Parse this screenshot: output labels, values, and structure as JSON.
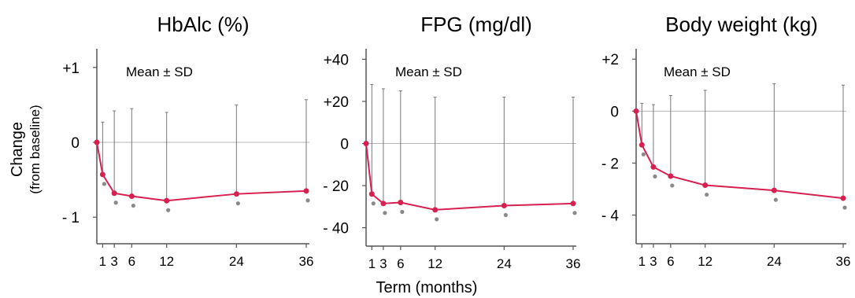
{
  "figure": {
    "ylabel_main": "Change",
    "ylabel_sub": "(from baseline)",
    "xlabel": "Term (months)"
  },
  "chart_data": [
    {
      "type": "line",
      "title": "HbAlc (%)",
      "annotation": "Mean ± SD",
      "x": [
        0,
        1,
        3,
        6,
        12,
        24,
        36
      ],
      "x_ticks": [
        "1",
        "3",
        "6",
        "12",
        "24",
        "36"
      ],
      "y_ticks": [
        "+1",
        "0",
        "- 1"
      ],
      "ylim": [
        -1.25,
        1.25
      ],
      "mean": [
        0,
        -0.43,
        -0.68,
        -0.72,
        -0.78,
        -0.69,
        -0.65
      ],
      "upper": [
        0,
        0.27,
        0.42,
        0.45,
        0.4,
        0.5,
        0.57
      ],
      "significant": [
        false,
        true,
        true,
        true,
        true,
        true,
        true
      ],
      "baseline": 0,
      "colors": {
        "line": "#d62050",
        "marker": "#d62050",
        "errorbar": "#777777",
        "significance": "#8a8a8a",
        "baseline": "#b5b5b5"
      }
    },
    {
      "type": "line",
      "title": "FPG (mg/dl)",
      "annotation": "Mean ± SD",
      "x": [
        0,
        1,
        3,
        6,
        12,
        24,
        36
      ],
      "x_ticks": [
        "1",
        "3",
        "6",
        "12",
        "24",
        "36"
      ],
      "y_ticks": [
        "+40",
        "+20",
        "0",
        "- 20",
        "- 40"
      ],
      "ylim": [
        -45,
        45
      ],
      "mean": [
        0,
        -24,
        -28.5,
        -28,
        -31.5,
        -29.5,
        -28.5
      ],
      "upper": [
        0,
        28,
        26,
        25,
        22,
        22,
        22
      ],
      "significant": [
        false,
        true,
        true,
        true,
        true,
        true,
        true
      ],
      "baseline": 0,
      "colors": {
        "line": "#d62050",
        "marker": "#d62050",
        "errorbar": "#777777",
        "significance": "#8a8a8a",
        "baseline": "#b5b5b5"
      }
    },
    {
      "type": "line",
      "title": "Body weight (kg)",
      "annotation": "Mean ± SD",
      "x": [
        0,
        1,
        3,
        6,
        12,
        24,
        36
      ],
      "x_ticks": [
        "1",
        "3",
        "6",
        "12",
        "24",
        "36"
      ],
      "y_ticks": [
        "+2",
        "0",
        "- 2",
        "- 4"
      ],
      "ylim": [
        -4.8,
        2.4
      ],
      "mean": [
        0,
        -1.3,
        -2.15,
        -2.5,
        -2.85,
        -3.05,
        -3.35
      ],
      "upper": [
        0,
        0.3,
        0.25,
        0.6,
        0.8,
        1.05,
        1.0
      ],
      "significant": [
        false,
        true,
        true,
        true,
        true,
        true,
        true
      ],
      "baseline": 0,
      "colors": {
        "line": "#d62050",
        "marker": "#d62050",
        "errorbar": "#777777",
        "significance": "#8a8a8a",
        "baseline": "#b5b5b5"
      }
    }
  ]
}
